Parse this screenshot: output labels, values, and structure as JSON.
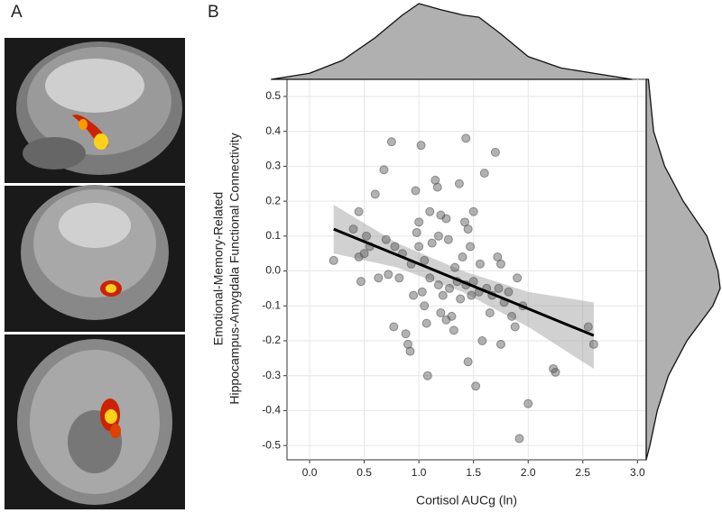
{
  "panel_labels": [
    "A",
    "B"
  ],
  "chart_data": {
    "type": "scatter",
    "x_label": "Cortisol AUCg (ln)",
    "y_label": [
      "Emotional-Memory-Related",
      "Hippocampus-Amygdala Functional Connectivity"
    ],
    "xlim": [
      -0.207,
      3.08
    ],
    "ylim": [
      -0.541,
      0.549
    ],
    "xticks": [
      {
        "value": 0,
        "label": "0.0"
      },
      0.5,
      {
        "value": 1,
        "label": "1.0"
      },
      1.5,
      {
        "value": 2,
        "label": "2.0"
      },
      2.5,
      {
        "value": 3,
        "label": "3.0"
      }
    ],
    "yticks": [
      0.5,
      0.4,
      0.3,
      0.2,
      0.1,
      {
        "value": 0,
        "label": "0.0"
      },
      -0.1,
      -0.2,
      -0.3,
      -0.4,
      -0.5
    ],
    "grid": true,
    "color": "#555555",
    "x": [
      0.22,
      0.4,
      0.45,
      0.45,
      0.47,
      0.5,
      0.52,
      0.55,
      0.6,
      0.63,
      0.68,
      0.7,
      0.72,
      0.75,
      0.77,
      0.78,
      0.82,
      0.85,
      0.88,
      0.9,
      0.92,
      0.93,
      0.95,
      0.97,
      0.98,
      1.0,
      1.0,
      1.02,
      1.03,
      1.05,
      1.05,
      1.07,
      1.08,
      1.1,
      1.1,
      1.12,
      1.15,
      1.17,
      1.18,
      1.18,
      1.2,
      1.2,
      1.22,
      1.25,
      1.25,
      1.27,
      1.28,
      1.3,
      1.32,
      1.33,
      1.35,
      1.37,
      1.38,
      1.4,
      1.42,
      1.43,
      1.43,
      1.45,
      1.45,
      1.47,
      1.48,
      1.5,
      1.5,
      1.52,
      1.55,
      1.56,
      1.58,
      1.6,
      1.62,
      1.65,
      1.67,
      1.7,
      1.72,
      1.73,
      1.75,
      1.75,
      1.78,
      1.82,
      1.85,
      1.88,
      1.9,
      1.92,
      1.95,
      2.0,
      2.23,
      2.25,
      2.55,
      2.6
    ],
    "y": [
      0.03,
      0.12,
      0.04,
      0.17,
      -0.03,
      0.05,
      0.1,
      0.07,
      0.22,
      -0.02,
      0.29,
      0.09,
      -0.01,
      0.37,
      -0.16,
      0.07,
      -0.02,
      0.05,
      -0.18,
      -0.21,
      -0.23,
      0.02,
      -0.07,
      0.23,
      0.11,
      0.14,
      0.07,
      0.36,
      -0.06,
      0.03,
      -0.1,
      -0.15,
      -0.3,
      0.17,
      -0.02,
      0.08,
      0.26,
      0.24,
      0.1,
      -0.04,
      0.16,
      -0.12,
      -0.07,
      0.15,
      -0.14,
      0.09,
      -0.05,
      -0.13,
      -0.17,
      0.01,
      -0.03,
      0.25,
      -0.08,
      0.04,
      0.14,
      0.38,
      -0.04,
      -0.26,
      0.12,
      0.07,
      -0.07,
      -0.03,
      0.17,
      -0.33,
      -0.06,
      0.02,
      -0.2,
      0.28,
      -0.05,
      -0.12,
      -0.07,
      0.34,
      0.04,
      -0.05,
      0.02,
      -0.21,
      -0.09,
      -0.06,
      -0.13,
      -0.16,
      -0.02,
      -0.48,
      -0.1,
      -0.38,
      -0.28,
      -0.29,
      -0.16,
      -0.21
    ],
    "fit": {
      "x": [
        0.22,
        0.8,
        1.4,
        2.0,
        2.6
      ],
      "y": [
        0.12,
        0.046,
        -0.031,
        -0.108,
        -0.185
      ],
      "lower": [
        0.05,
        0.01,
        -0.06,
        -0.16,
        -0.28
      ],
      "upper": [
        0.19,
        0.08,
        0.0,
        -0.06,
        -0.09
      ]
    },
    "marginal_x": {
      "x": [
        -0.35,
        0,
        0.3,
        0.6,
        0.85,
        1.0,
        1.2,
        1.4,
        1.55,
        1.75,
        2.0,
        2.3,
        2.6,
        2.95
      ],
      "density": [
        0,
        0.08,
        0.25,
        0.55,
        0.85,
        1.0,
        0.92,
        0.85,
        0.82,
        0.6,
        0.3,
        0.15,
        0.08,
        0
      ]
    },
    "marginal_y": {
      "y": [
        0.549,
        0.4,
        0.3,
        0.2,
        0.1,
        0,
        -0.05,
        -0.1,
        -0.2,
        -0.3,
        -0.4,
        -0.5,
        -0.541
      ],
      "density": [
        0.03,
        0.1,
        0.25,
        0.5,
        0.82,
        0.97,
        1.0,
        0.9,
        0.55,
        0.3,
        0.15,
        0.05,
        0
      ]
    }
  }
}
